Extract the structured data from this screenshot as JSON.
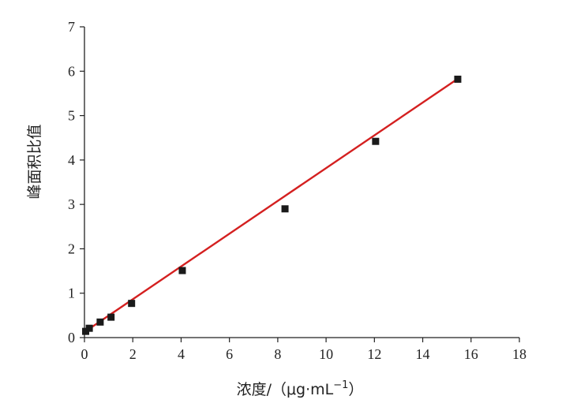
{
  "chart_data": {
    "type": "scatter",
    "title": "",
    "xlabel": "浓度/（μg·mL",
    "xlabel_sup": "−1",
    "xlabel_close": "）",
    "ylabel": "峰面积比值",
    "xlim": [
      0,
      18
    ],
    "ylim": [
      0,
      7
    ],
    "x_ticks": [
      0,
      2,
      4,
      6,
      8,
      10,
      12,
      14,
      16,
      18
    ],
    "y_ticks": [
      0,
      1,
      2,
      3,
      4,
      5,
      6,
      7
    ],
    "grid": false,
    "legend": "none",
    "series": [
      {
        "marker": "square",
        "color": "#1a1a1a",
        "x": [
          0.05,
          0.2,
          0.65,
          1.1,
          1.95,
          4.05,
          8.3,
          12.05,
          15.45
        ],
        "y": [
          0.14,
          0.21,
          0.35,
          0.46,
          0.77,
          1.51,
          2.9,
          4.42,
          5.82
        ]
      }
    ],
    "fit_line": {
      "color": "#d42020",
      "x": [
        0,
        15.45
      ],
      "y": [
        0.125,
        5.83
      ]
    }
  }
}
